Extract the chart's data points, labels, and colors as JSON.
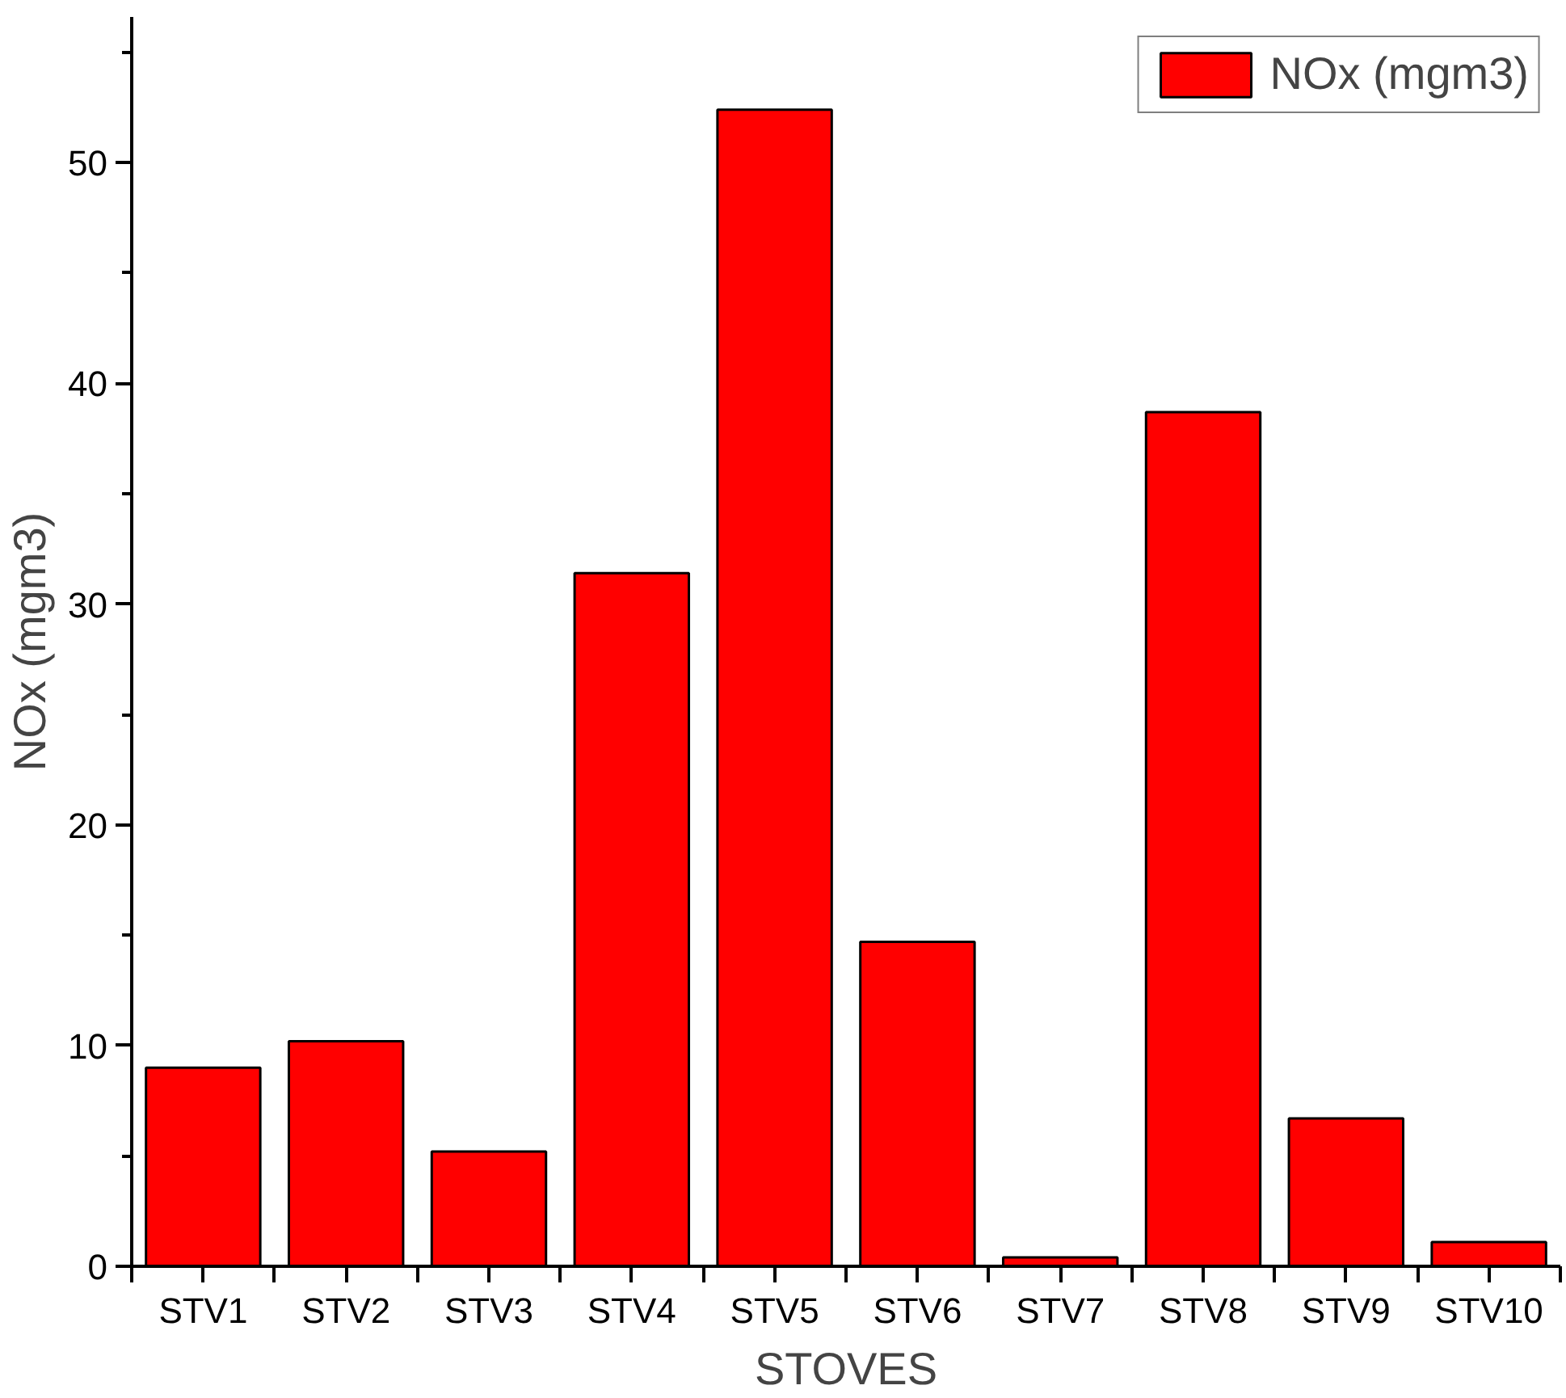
{
  "chart_data": {
    "type": "bar",
    "xlabel": "STOVES",
    "ylabel": "NOx (mgm3)",
    "categories": [
      "STV1",
      "STV2",
      "STV3",
      "STV4",
      "STV5",
      "STV6",
      "STV7",
      "STV8",
      "STV9",
      "STV10"
    ],
    "series": [
      {
        "name": "NOx (mgm3)",
        "color": "#ff0000",
        "values": [
          9.0,
          10.2,
          5.2,
          31.4,
          52.4,
          14.7,
          0.4,
          38.7,
          6.7,
          1.1
        ]
      }
    ],
    "ylim": [
      0,
      56.6
    ],
    "yticks": [
      0,
      {
        "value": 5,
        "label": null
      },
      10,
      {
        "value": 15,
        "label": null
      },
      20,
      {
        "value": 25,
        "label": null
      },
      30,
      {
        "value": 35,
        "label": null
      },
      40,
      {
        "value": 45,
        "label": null
      },
      50,
      {
        "value": 55,
        "label": null
      }
    ],
    "legend": "top right",
    "grid": false
  }
}
